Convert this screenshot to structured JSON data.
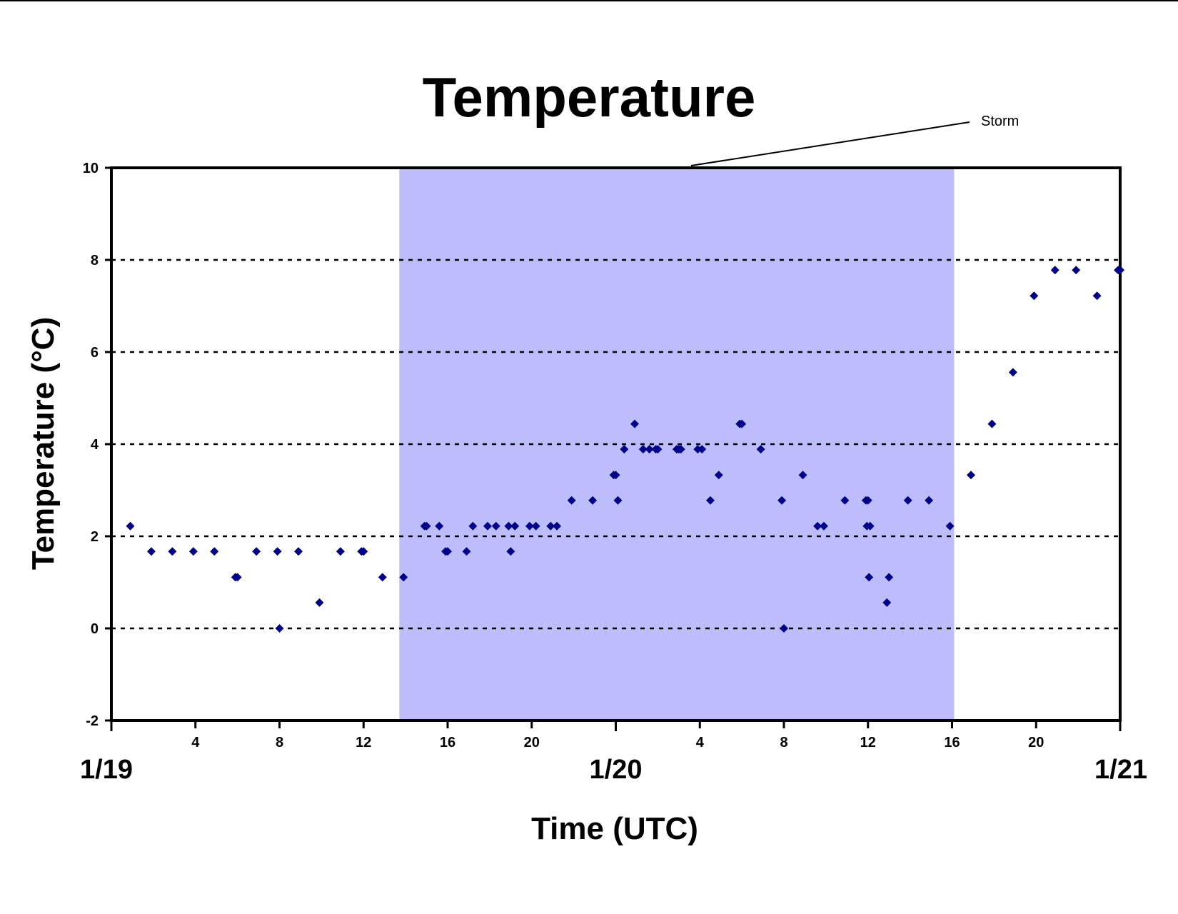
{
  "chart_data": {
    "type": "scatter",
    "title": "Temperature",
    "xlabel": "Time (UTC)",
    "ylabel": "Temperature (°C)",
    "x_unit": "hours since start of 1/19 (UTC)",
    "xlim": [
      0,
      48
    ],
    "ylim": [
      -2,
      10
    ],
    "y_ticks": [
      -2,
      0,
      2,
      4,
      6,
      8,
      10
    ],
    "x_hour_ticks": [
      {
        "hour": 4,
        "label": "4"
      },
      {
        "hour": 8,
        "label": "8"
      },
      {
        "hour": 12,
        "label": "12"
      },
      {
        "hour": 16,
        "label": "16"
      },
      {
        "hour": 20,
        "label": "20"
      },
      {
        "hour": 28,
        "label": "4"
      },
      {
        "hour": 32,
        "label": "8"
      },
      {
        "hour": 36,
        "label": "12"
      },
      {
        "hour": 40,
        "label": "16"
      },
      {
        "hour": 44,
        "label": "20"
      }
    ],
    "x_date_labels": [
      {
        "hour": 0,
        "label": "1/19"
      },
      {
        "hour": 24,
        "label": "1/20"
      },
      {
        "hour": 48,
        "label": "1/21"
      }
    ],
    "grid": "horizontal dashed at 0, 2, 4, 6, 8",
    "marker_color": "#00008b",
    "shaded_region": {
      "label": "Storm",
      "x_start": 13.7,
      "x_end": 40.1,
      "color": "#bdbdfb"
    },
    "series": [
      {
        "points": [
          [
            0.9,
            2.22
          ],
          [
            1.9,
            1.67
          ],
          [
            2.9,
            1.67
          ],
          [
            3.9,
            1.67
          ],
          [
            4.9,
            1.67
          ],
          [
            5.9,
            1.11
          ],
          [
            6.0,
            1.11
          ],
          [
            6.9,
            1.67
          ],
          [
            7.9,
            1.67
          ],
          [
            8.0,
            0.0
          ],
          [
            8.9,
            1.67
          ],
          [
            9.9,
            0.56
          ],
          [
            10.9,
            1.67
          ],
          [
            11.9,
            1.67
          ],
          [
            12.0,
            1.67
          ],
          [
            12.9,
            1.11
          ],
          [
            13.9,
            1.11
          ],
          [
            14.9,
            2.22
          ],
          [
            15.0,
            2.22
          ],
          [
            15.6,
            2.22
          ],
          [
            15.9,
            1.67
          ],
          [
            16.0,
            1.67
          ],
          [
            16.9,
            1.67
          ],
          [
            17.2,
            2.22
          ],
          [
            17.9,
            2.22
          ],
          [
            18.3,
            2.22
          ],
          [
            18.9,
            2.22
          ],
          [
            19.0,
            1.67
          ],
          [
            19.2,
            2.22
          ],
          [
            19.9,
            2.22
          ],
          [
            20.2,
            2.22
          ],
          [
            20.9,
            2.22
          ],
          [
            21.2,
            2.22
          ],
          [
            21.9,
            2.78
          ],
          [
            22.9,
            2.78
          ],
          [
            23.9,
            3.33
          ],
          [
            24.0,
            3.33
          ],
          [
            24.1,
            2.78
          ],
          [
            24.4,
            3.89
          ],
          [
            24.9,
            4.44
          ],
          [
            25.3,
            3.89
          ],
          [
            25.6,
            3.89
          ],
          [
            25.9,
            3.89
          ],
          [
            26.0,
            3.89
          ],
          [
            26.9,
            3.89
          ],
          [
            27.0,
            3.89
          ],
          [
            27.1,
            3.89
          ],
          [
            27.9,
            3.89
          ],
          [
            28.1,
            3.89
          ],
          [
            28.5,
            2.78
          ],
          [
            28.9,
            3.33
          ],
          [
            29.9,
            4.44
          ],
          [
            30.0,
            4.44
          ],
          [
            30.9,
            3.89
          ],
          [
            31.9,
            2.78
          ],
          [
            32.0,
            0.0
          ],
          [
            32.9,
            3.33
          ],
          [
            33.6,
            2.22
          ],
          [
            33.9,
            2.22
          ],
          [
            34.9,
            2.78
          ],
          [
            35.9,
            2.78
          ],
          [
            36.0,
            2.78
          ],
          [
            35.95,
            2.22
          ],
          [
            36.1,
            2.22
          ],
          [
            36.05,
            1.11
          ],
          [
            36.9,
            0.56
          ],
          [
            37.0,
            1.11
          ],
          [
            37.9,
            2.78
          ],
          [
            38.9,
            2.78
          ],
          [
            39.9,
            2.22
          ],
          [
            40.9,
            3.33
          ],
          [
            41.9,
            4.44
          ],
          [
            42.9,
            5.56
          ],
          [
            43.9,
            7.22
          ],
          [
            44.9,
            7.78
          ],
          [
            45.9,
            7.78
          ],
          [
            46.9,
            7.22
          ],
          [
            47.9,
            7.78
          ],
          [
            48.0,
            7.78
          ]
        ]
      }
    ]
  }
}
